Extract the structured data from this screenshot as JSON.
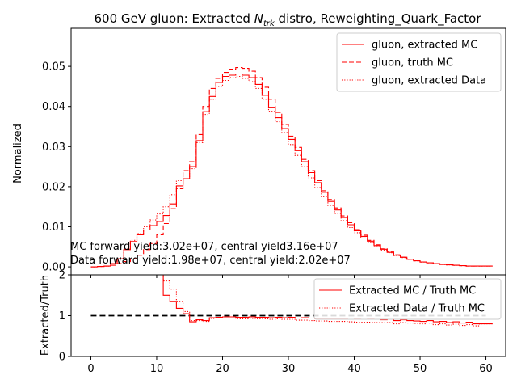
{
  "title_prefix": "600 GeV gluon: Extracted ",
  "title_symbol": "N",
  "title_subscript": "trk",
  "title_suffix": " distro, Reweighting_Quark_Factor",
  "annotations": {
    "mc_yield": "MC forward yield:3.02e+07, central yield3.16e+07",
    "data_yield": "Data forward yield:1.98e+07, central yield:2.02e+07"
  },
  "colors": {
    "series": "#ff0000",
    "reference": "#000000",
    "axes": "#000000"
  },
  "chart_data": [
    {
      "type": "line",
      "drawstyle": "steps",
      "ylabel": "Normalized",
      "xlim": [
        -3,
        63
      ],
      "ylim": [
        -0.002,
        0.0595
      ],
      "x_ticks": [
        0,
        10,
        20,
        30,
        40,
        50,
        60
      ],
      "y_ticks": [
        0.0,
        0.01,
        0.02,
        0.03,
        0.04,
        0.05
      ],
      "y_tick_labels": [
        "0.00",
        "0.01",
        "0.02",
        "0.03",
        "0.04",
        "0.05"
      ],
      "legend_position": "top-right",
      "x": [
        0,
        1,
        2,
        3,
        4,
        5,
        6,
        7,
        8,
        9,
        10,
        11,
        12,
        13,
        14,
        15,
        16,
        17,
        18,
        19,
        20,
        21,
        22,
        23,
        24,
        25,
        26,
        27,
        28,
        29,
        30,
        31,
        32,
        33,
        34,
        35,
        36,
        37,
        38,
        39,
        40,
        41,
        42,
        43,
        44,
        45,
        46,
        47,
        48,
        49,
        50,
        51,
        52,
        53,
        54,
        55,
        56,
        57,
        58,
        59,
        60
      ],
      "series": [
        {
          "name": "gluon, extracted MC",
          "style": "solid",
          "values": [
            0.0,
            0.0001,
            0.0002,
            0.0008,
            0.002,
            0.0043,
            0.0063,
            0.008,
            0.0092,
            0.0103,
            0.0113,
            0.0128,
            0.0157,
            0.0202,
            0.022,
            0.025,
            0.0315,
            0.0387,
            0.0425,
            0.046,
            0.0475,
            0.0478,
            0.0481,
            0.0478,
            0.0472,
            0.0455,
            0.0428,
            0.0398,
            0.0372,
            0.0345,
            0.0318,
            0.029,
            0.0262,
            0.0235,
            0.021,
            0.0186,
            0.0163,
            0.0142,
            0.0123,
            0.0105,
            0.009,
            0.0076,
            0.0064,
            0.0053,
            0.0044,
            0.0036,
            0.0029,
            0.0024,
            0.0019,
            0.0015,
            0.0012,
            0.001,
            0.0008,
            0.0006,
            0.0005,
            0.0004,
            0.0003,
            0.0002,
            0.0002,
            0.0002,
            0.0002
          ]
        },
        {
          "name": "gluon, truth MC",
          "style": "dashed",
          "values": [
            0.0,
            0.0001,
            0.0002,
            0.0004,
            0.0008,
            0.0013,
            0.002,
            0.0029,
            0.0043,
            0.0058,
            0.008,
            0.0108,
            0.0145,
            0.0195,
            0.024,
            0.0262,
            0.033,
            0.04,
            0.0445,
            0.047,
            0.0485,
            0.0493,
            0.0497,
            0.0495,
            0.0488,
            0.0472,
            0.0448,
            0.0418,
            0.0385,
            0.0355,
            0.0326,
            0.0298,
            0.0268,
            0.024,
            0.0215,
            0.019,
            0.0168,
            0.0147,
            0.0127,
            0.011,
            0.0093,
            0.0079,
            0.0066,
            0.0055,
            0.0045,
            0.0037,
            0.003,
            0.0024,
            0.0019,
            0.0015,
            0.0012,
            0.001,
            0.0008,
            0.0006,
            0.0005,
            0.0004,
            0.0003,
            0.0002,
            0.0002,
            0.0002,
            0.0002
          ]
        },
        {
          "name": "gluon, extracted Data",
          "style": "dotted",
          "values": [
            0.0,
            0.0001,
            0.0002,
            0.0008,
            0.002,
            0.0045,
            0.0066,
            0.0083,
            0.01,
            0.0117,
            0.0132,
            0.015,
            0.018,
            0.0215,
            0.022,
            0.0245,
            0.031,
            0.038,
            0.0418,
            0.045,
            0.0465,
            0.0472,
            0.0475,
            0.047,
            0.0462,
            0.0445,
            0.0418,
            0.0388,
            0.0362,
            0.0335,
            0.0305,
            0.0278,
            0.025,
            0.0222,
            0.0198,
            0.0175,
            0.0153,
            0.0133,
            0.0115,
            0.0098,
            0.0085,
            0.0072,
            0.006,
            0.005,
            0.0042,
            0.0035,
            0.0028,
            0.0023,
            0.0019,
            0.0015,
            0.0012,
            0.001,
            0.0008,
            0.0006,
            0.0005,
            0.0004,
            0.0003,
            0.0002,
            0.0002,
            0.0002,
            0.0002
          ]
        }
      ]
    },
    {
      "type": "line",
      "drawstyle": "steps",
      "ylabel": "Extracted/Truth",
      "xlim": [
        -3,
        63
      ],
      "ylim": [
        0,
        2
      ],
      "x_ticks": [
        0,
        10,
        20,
        30,
        40,
        50,
        60
      ],
      "x_tick_labels": [
        "0",
        "10",
        "20",
        "30",
        "40",
        "50",
        "60"
      ],
      "y_ticks": [
        0,
        1,
        2
      ],
      "y_tick_labels": [
        "0",
        "1",
        "2"
      ],
      "legend_position": "top-right",
      "reference_line": {
        "y": 1,
        "x_range": [
          0,
          60
        ],
        "style": "dashed"
      },
      "x": [
        10,
        11,
        12,
        13,
        14,
        15,
        16,
        17,
        18,
        19,
        20,
        21,
        22,
        23,
        24,
        25,
        26,
        27,
        28,
        29,
        30,
        31,
        32,
        33,
        34,
        35,
        36,
        37,
        38,
        39,
        40,
        41,
        42,
        43,
        44,
        45,
        46,
        47,
        48,
        49,
        50,
        51,
        52,
        53,
        54,
        55,
        56,
        57,
        58,
        59,
        60
      ],
      "series": [
        {
          "name": "Extracted MC / Truth MC",
          "style": "solid",
          "values": [
            2.0,
            1.5,
            1.35,
            1.18,
            1.05,
            0.85,
            0.9,
            0.88,
            0.95,
            0.96,
            0.97,
            0.97,
            0.96,
            0.96,
            0.97,
            0.96,
            0.96,
            0.95,
            0.96,
            0.95,
            0.96,
            0.94,
            0.95,
            0.94,
            0.93,
            0.93,
            0.93,
            0.92,
            0.92,
            0.91,
            0.92,
            0.91,
            0.92,
            0.91,
            0.9,
            0.91,
            0.88,
            0.9,
            0.88,
            0.87,
            0.86,
            0.88,
            0.85,
            0.86,
            0.83,
            0.85,
            0.82,
            0.84,
            0.8,
            0.8,
            0.8
          ]
        },
        {
          "name": "Extracted Data / Truth MC",
          "style": "dotted",
          "values": [
            2.0,
            1.85,
            1.65,
            1.35,
            1.1,
            0.88,
            0.88,
            0.86,
            0.93,
            0.95,
            0.94,
            0.94,
            0.92,
            0.92,
            0.93,
            0.92,
            0.92,
            0.91,
            0.92,
            0.91,
            0.91,
            0.89,
            0.89,
            0.88,
            0.87,
            0.87,
            0.86,
            0.86,
            0.86,
            0.85,
            0.84,
            0.84,
            0.84,
            0.83,
            0.83,
            0.83,
            0.8,
            0.83,
            0.82,
            0.81,
            0.8,
            0.82,
            0.78,
            0.8,
            0.77,
            0.79,
            0.76,
            0.78,
            0.75,
            0.8,
            0.8
          ]
        }
      ]
    }
  ]
}
